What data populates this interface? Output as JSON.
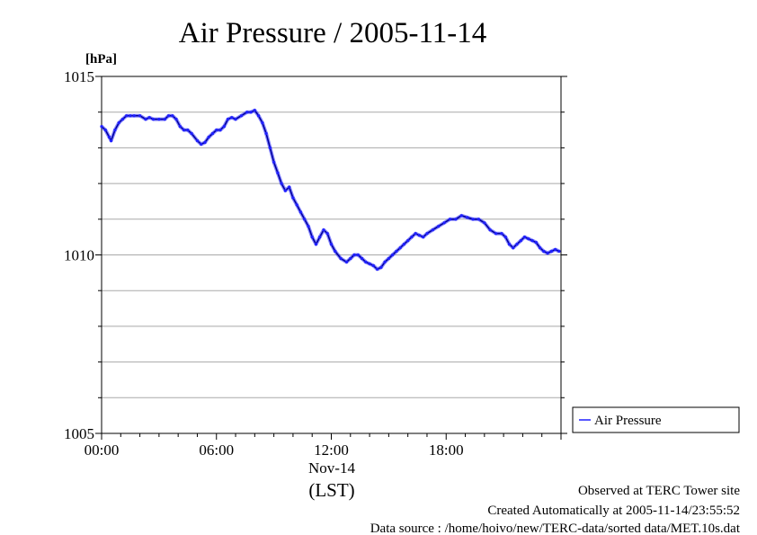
{
  "chart_data": {
    "type": "line",
    "title": "Air Pressure / 2005-11-14",
    "ylabel": "[hPa]",
    "ylim": [
      1005,
      1015
    ],
    "y_ticks": [
      1005,
      1010,
      1015
    ],
    "y_minor_step": 1,
    "xlim": [
      "00:00",
      "24:00"
    ],
    "x_ticks": [
      "00:00",
      "06:00",
      "12:00",
      "18:00"
    ],
    "x_date_label": "Nov-14",
    "x_date_label_at": "12:00",
    "x_axis_label": "(LST)",
    "grid": true,
    "legend_position": "right",
    "series": [
      {
        "name": "Air Pressure",
        "color": "#2020ff",
        "x_hours": [
          0.0,
          0.2,
          0.4,
          0.5,
          0.7,
          0.9,
          1.1,
          1.3,
          1.5,
          1.7,
          2.0,
          2.3,
          2.5,
          2.7,
          3.0,
          3.3,
          3.5,
          3.7,
          3.9,
          4.1,
          4.3,
          4.5,
          4.7,
          5.0,
          5.2,
          5.4,
          5.6,
          5.8,
          6.0,
          6.2,
          6.4,
          6.6,
          6.8,
          7.0,
          7.3,
          7.6,
          7.8,
          8.0,
          8.2,
          8.4,
          8.6,
          8.8,
          9.0,
          9.2,
          9.4,
          9.6,
          9.8,
          10.0,
          10.2,
          10.4,
          10.6,
          10.8,
          11.0,
          11.2,
          11.4,
          11.6,
          11.8,
          12.0,
          12.2,
          12.5,
          12.8,
          13.0,
          13.2,
          13.4,
          13.6,
          13.8,
          14.0,
          14.2,
          14.4,
          14.6,
          14.8,
          15.0,
          15.2,
          15.4,
          15.6,
          15.8,
          16.0,
          16.2,
          16.4,
          16.6,
          16.8,
          17.0,
          17.3,
          17.6,
          17.9,
          18.2,
          18.5,
          18.8,
          19.1,
          19.4,
          19.7,
          20.0,
          20.3,
          20.6,
          20.9,
          21.1,
          21.3,
          21.5,
          21.7,
          21.9,
          22.1,
          22.3,
          22.5,
          22.7,
          22.9,
          23.1,
          23.3,
          23.5,
          23.7,
          23.9
        ],
        "values": [
          1013.6,
          1013.5,
          1013.3,
          1013.2,
          1013.5,
          1013.7,
          1013.8,
          1013.9,
          1013.9,
          1013.9,
          1013.9,
          1013.8,
          1013.85,
          1013.8,
          1013.8,
          1013.8,
          1013.9,
          1013.9,
          1013.8,
          1013.6,
          1013.5,
          1013.5,
          1013.4,
          1013.2,
          1013.1,
          1013.15,
          1013.3,
          1013.4,
          1013.5,
          1013.5,
          1013.6,
          1013.8,
          1013.85,
          1013.8,
          1013.9,
          1014.0,
          1014.0,
          1014.05,
          1013.9,
          1013.7,
          1013.4,
          1013.0,
          1012.6,
          1012.3,
          1012.0,
          1011.8,
          1011.9,
          1011.6,
          1011.4,
          1011.2,
          1011.0,
          1010.8,
          1010.5,
          1010.3,
          1010.5,
          1010.7,
          1010.6,
          1010.3,
          1010.1,
          1009.9,
          1009.8,
          1009.9,
          1010.0,
          1010.0,
          1009.9,
          1009.8,
          1009.75,
          1009.7,
          1009.6,
          1009.65,
          1009.8,
          1009.9,
          1010.0,
          1010.1,
          1010.2,
          1010.3,
          1010.4,
          1010.5,
          1010.6,
          1010.55,
          1010.5,
          1010.6,
          1010.7,
          1010.8,
          1010.9,
          1011.0,
          1011.0,
          1011.1,
          1011.05,
          1011.0,
          1011.0,
          1010.9,
          1010.7,
          1010.6,
          1010.6,
          1010.5,
          1010.3,
          1010.2,
          1010.3,
          1010.4,
          1010.5,
          1010.45,
          1010.4,
          1010.35,
          1010.2,
          1010.1,
          1010.05,
          1010.1,
          1010.15,
          1010.1
        ]
      }
    ]
  },
  "footer": {
    "line1": "Observed at TERC Tower site",
    "line2": "Created Automatically at 2005-11-14/23:55:52",
    "line3": "Data source : /home/hoivo/new/TERC-data/sorted  data/MET.10s.dat"
  }
}
